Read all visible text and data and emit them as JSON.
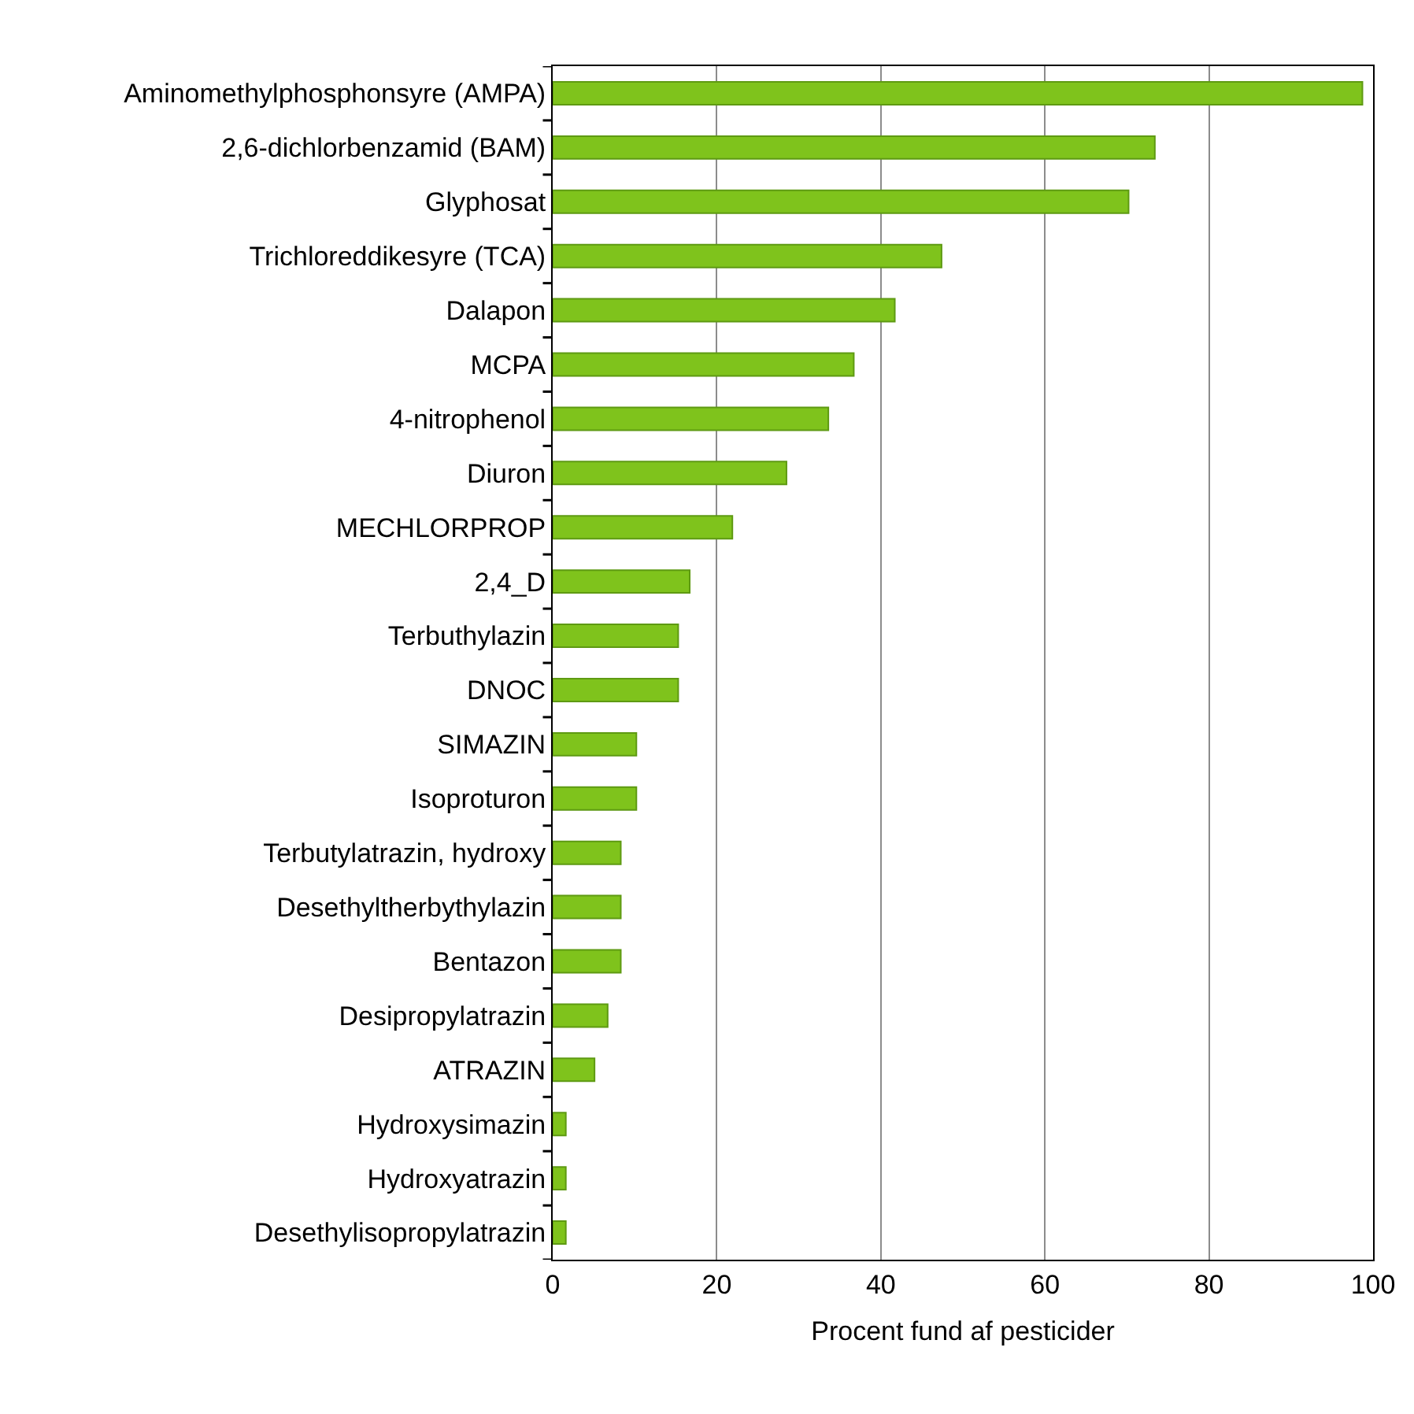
{
  "chart_data": {
    "type": "bar",
    "orientation": "horizontal",
    "xlabel": "Procent fund af pesticider",
    "categories": [
      "Aminomethylphosphonsyre (AMPA)",
      "2,6-dichlorbenzamid (BAM)",
      "Glyphosat",
      "Trichloreddikesyre (TCA)",
      "Dalapon",
      "MCPA",
      "4-nitrophenol",
      "Diuron",
      "MECHLORPROP",
      "2,4_D",
      "Terbuthylazin",
      "DNOC",
      "SIMAZIN",
      "Isoproturon",
      "Terbutylatrazin, hydroxy",
      "Desethyltherbythylazin",
      "Bentazon",
      "Desipropylatrazin",
      "ATRAZIN",
      "Hydroxysimazin",
      "Hydroxyatrazin",
      "Desethylisopropylatrazin"
    ],
    "values": [
      98.7,
      73.4,
      70.2,
      47.4,
      41.7,
      36.7,
      33.6,
      28.5,
      21.9,
      16.7,
      15.3,
      15.3,
      10.2,
      10.2,
      8.3,
      8.3,
      8.3,
      6.7,
      5.1,
      1.6,
      1.6,
      1.6
    ],
    "color": "#7fc31c",
    "xlim": [
      0,
      100
    ],
    "xticks": [
      0,
      20,
      40,
      60,
      80,
      100
    ],
    "grid": "x",
    "legend": false
  }
}
